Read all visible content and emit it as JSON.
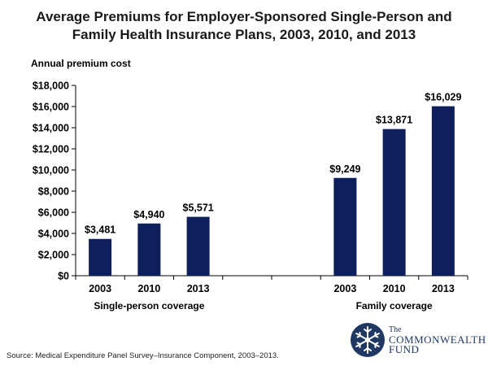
{
  "title_line1": "Average Premiums for Employer-Sponsored Single-Person and",
  "title_line2": "Family Health Insurance Plans, 2003, 2010, and 2013",
  "source": "Source: Medical Expenditure Panel Survey–Insurance Component, 2003–2013.",
  "logo": {
    "line1": "The",
    "line2": "COMMONWEALTH",
    "line3": "FUND"
  },
  "colors": {
    "bar": "#0f1f5c",
    "axis": "#000000"
  },
  "chart_data": {
    "type": "bar",
    "title": "Average Premiums for Employer-Sponsored Single-Person and Family Health Insurance Plans, 2003, 2010, and 2013",
    "ylabel": "Annual premium cost",
    "ylim": [
      0,
      18000
    ],
    "yticks": [
      0,
      2000,
      4000,
      6000,
      8000,
      10000,
      12000,
      14000,
      16000,
      18000
    ],
    "ytick_labels": [
      "$0",
      "$2,000",
      "$4,000",
      "$6,000",
      "$8,000",
      "$10,000",
      "$12,000",
      "$14,000",
      "$16,000",
      "$18,000"
    ],
    "grid": false,
    "groups": [
      {
        "name": "Single-person coverage",
        "categories": [
          "2003",
          "2010",
          "2013"
        ],
        "values": [
          3481,
          4940,
          5571
        ],
        "labels": [
          "$3,481",
          "$4,940",
          "$5,571"
        ]
      },
      {
        "name": "Family coverage",
        "categories": [
          "2003",
          "2010",
          "2013"
        ],
        "values": [
          9249,
          13871,
          16029
        ],
        "labels": [
          "$9,249",
          "$13,871",
          "$16,029"
        ]
      }
    ]
  }
}
